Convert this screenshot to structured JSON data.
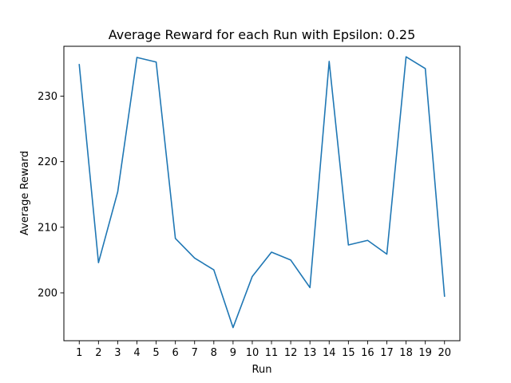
{
  "chart_data": {
    "type": "line",
    "title": "Average Reward for each Run with Epsilon: 0.25",
    "xlabel": "Run",
    "ylabel": "Average Reward",
    "x": [
      "1",
      "2",
      "3",
      "4",
      "5",
      "6",
      "7",
      "8",
      "9",
      "10",
      "11",
      "12",
      "13",
      "14",
      "15",
      "16",
      "17",
      "18",
      "19",
      "20"
    ],
    "series": [
      {
        "values": [
          234.8,
          204.6,
          215.4,
          235.9,
          235.2,
          208.3,
          205.3,
          203.5,
          194.7,
          202.5,
          206.2,
          205.0,
          200.8,
          235.3,
          207.3,
          208.0,
          205.9,
          236.0,
          234.2,
          199.5
        ],
        "color": "#1f77b4"
      }
    ],
    "xlim": [
      0.2,
      20.8
    ],
    "ylim": [
      192.7,
      237.6
    ],
    "yticks": [
      200,
      210,
      220,
      230
    ],
    "grid": false,
    "legend": "none"
  }
}
